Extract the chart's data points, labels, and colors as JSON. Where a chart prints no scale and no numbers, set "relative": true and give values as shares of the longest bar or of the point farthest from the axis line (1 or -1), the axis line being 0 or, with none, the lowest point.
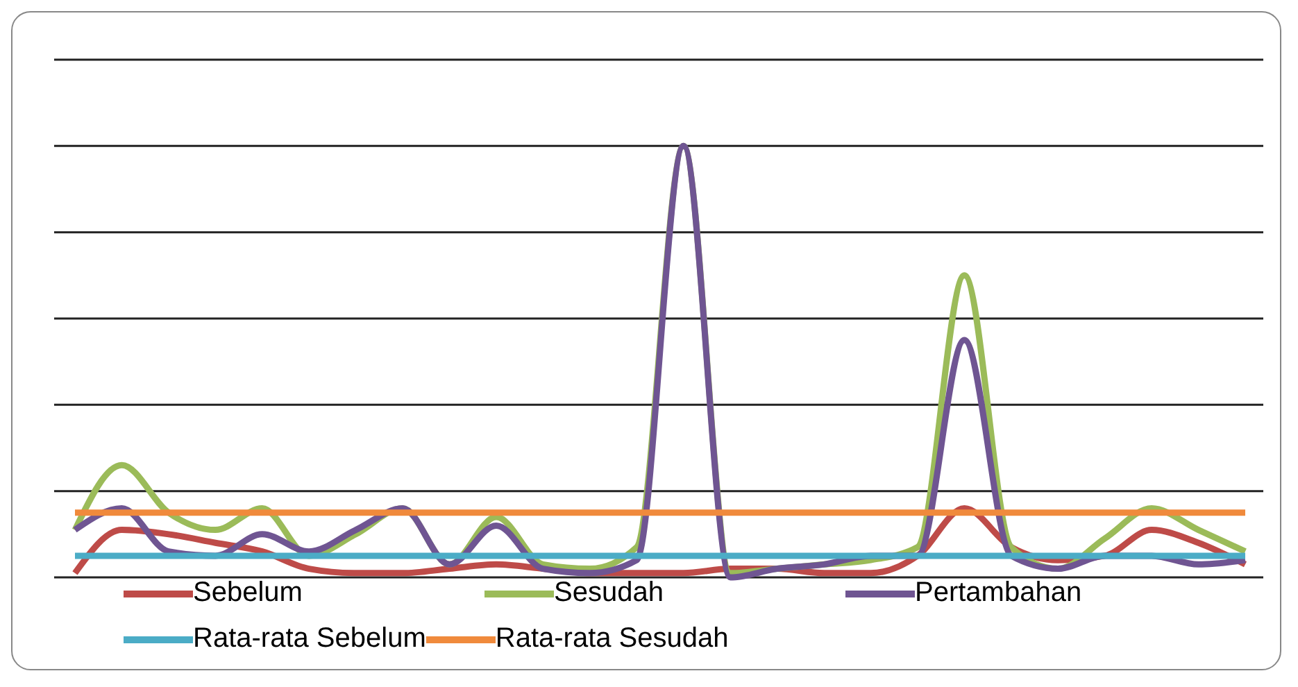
{
  "chart_data": {
    "type": "line",
    "relative": true,
    "grid": "y",
    "legend": "bottom",
    "marker": "none",
    "line_style": "solid",
    "categories": [
      null,
      null,
      null,
      null,
      null,
      null,
      null,
      null,
      null,
      null,
      null,
      null,
      null,
      null,
      null,
      null,
      null,
      null,
      null,
      null,
      null,
      null,
      null,
      null,
      null,
      null
    ],
    "series": [
      {
        "name": "Sebelum",
        "color": "#be4b48",
        "values": [
          0.01,
          0.11,
          0.1,
          0.08,
          0.06,
          0.02,
          0.01,
          0.01,
          0.02,
          0.03,
          0.02,
          0.01,
          0.01,
          0.01,
          0.02,
          0.02,
          0.01,
          0.01,
          0.05,
          0.16,
          0.07,
          0.04,
          0.05,
          0.11,
          0.08,
          0.03
        ]
      },
      {
        "name": "Sesudah",
        "color": "#9bbb59",
        "values": [
          0.11,
          0.26,
          0.15,
          0.11,
          0.16,
          0.05,
          0.1,
          0.16,
          0.03,
          0.14,
          0.03,
          0.02,
          0.07,
          1,
          0.01,
          0.02,
          0.03,
          0.04,
          0.07,
          0.7,
          0.07,
          0.02,
          0.09,
          0.16,
          0.11,
          0.06
        ]
      },
      {
        "name": "Pertambahan",
        "color": "#6f5592",
        "values": [
          0.11,
          0.16,
          0.06,
          0.05,
          0.1,
          0.06,
          0.11,
          0.16,
          0.03,
          0.12,
          0.02,
          0.01,
          0.04,
          1,
          0,
          0.02,
          0.03,
          0.05,
          0.05,
          0.55,
          0.05,
          0.02,
          0.05,
          0.05,
          0.03,
          0.04
        ]
      },
      {
        "name": "Rata-rata Sebelum",
        "color": "#4bacc6",
        "values": [
          0.05,
          0.05,
          0.05,
          0.05,
          0.05,
          0.05,
          0.05,
          0.05,
          0.05,
          0.05,
          0.05,
          0.05,
          0.05,
          0.05,
          0.05,
          0.05,
          0.05,
          0.05,
          0.05,
          0.05,
          0.05,
          0.05,
          0.05,
          0.05,
          0.05,
          0.05
        ]
      },
      {
        "name": "Rata-rata Sesudah",
        "color": "#f08a3c",
        "values": [
          0.15,
          0.15,
          0.15,
          0.15,
          0.15,
          0.15,
          0.15,
          0.15,
          0.15,
          0.15,
          0.15,
          0.15,
          0.15,
          0.15,
          0.15,
          0.15,
          0.15,
          0.15,
          0.15,
          0.15,
          0.15,
          0.15,
          0.15,
          0.15,
          0.15,
          0.15
        ]
      }
    ]
  }
}
